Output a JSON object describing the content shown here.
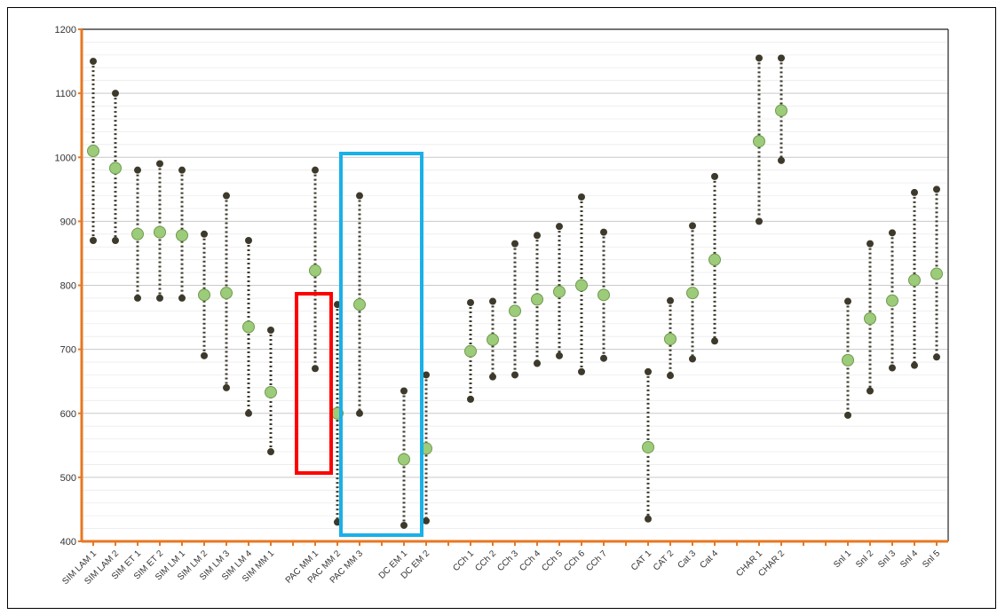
{
  "chart_data": {
    "type": "range-dot",
    "ylim": [
      400,
      1200
    ],
    "yticks": [
      400,
      500,
      600,
      700,
      800,
      900,
      1000,
      1100,
      1200
    ],
    "grid": true,
    "colors": {
      "range_dot": "#3d3a2c",
      "mean_dot": "#9ccc7a",
      "mean_dot_edge": "#6f9a4e",
      "axis": "#e87722",
      "red_box": "#ff0000",
      "blue_box": "#1ab0e8"
    },
    "items": [
      {
        "label": "SIM LAM 1",
        "min": 870,
        "max": 1150,
        "mid": 1010
      },
      {
        "label": "SIM LAM 2",
        "min": 870,
        "max": 1100,
        "mid": 983
      },
      {
        "label": "SIM ET 1",
        "min": 780,
        "max": 980,
        "mid": 880
      },
      {
        "label": "SIM ET 2",
        "min": 780,
        "max": 990,
        "mid": 883
      },
      {
        "label": "SIM LM 1",
        "min": 780,
        "max": 980,
        "mid": 878
      },
      {
        "label": "SIM LM 2",
        "min": 690,
        "max": 880,
        "mid": 785
      },
      {
        "label": "SIM LM 3",
        "min": 640,
        "max": 940,
        "mid": 788
      },
      {
        "label": "SIM LM 4",
        "min": 600,
        "max": 870,
        "mid": 735
      },
      {
        "label": "SIM MM 1",
        "min": 540,
        "max": 730,
        "mid": 633
      },
      {
        "label": "",
        "gap": true
      },
      {
        "label": "PAC MM 1",
        "min": 670,
        "max": 980,
        "mid": 823
      },
      {
        "label": "PAC MM 2",
        "min": 430,
        "max": 770,
        "mid": 600
      },
      {
        "label": "PAC MM 3",
        "min": 600,
        "max": 940,
        "mid": 770
      },
      {
        "label": "",
        "gap": true
      },
      {
        "label": "DC EM 1",
        "min": 425,
        "max": 635,
        "mid": 528
      },
      {
        "label": "DC EM 2",
        "min": 432,
        "max": 660,
        "mid": 545
      },
      {
        "label": "",
        "gap": true
      },
      {
        "label": "CCh 1",
        "min": 622,
        "max": 773,
        "mid": 697
      },
      {
        "label": "CCh 2",
        "min": 657,
        "max": 775,
        "mid": 715
      },
      {
        "label": "CCh 3",
        "min": 660,
        "max": 865,
        "mid": 760
      },
      {
        "label": "CCh 4",
        "min": 678,
        "max": 878,
        "mid": 778
      },
      {
        "label": "CCh 5",
        "min": 690,
        "max": 892,
        "mid": 790
      },
      {
        "label": "CCh 6",
        "min": 665,
        "max": 938,
        "mid": 800
      },
      {
        "label": "CCh 7",
        "min": 686,
        "max": 883,
        "mid": 785
      },
      {
        "label": "",
        "gap": true
      },
      {
        "label": "CAT 1",
        "min": 435,
        "max": 665,
        "mid": 547
      },
      {
        "label": "CAT 2",
        "min": 659,
        "max": 776,
        "mid": 716
      },
      {
        "label": "Cat 3",
        "min": 685,
        "max": 893,
        "mid": 788
      },
      {
        "label": "Cat 4",
        "min": 713,
        "max": 970,
        "mid": 840
      },
      {
        "label": "",
        "gap": true
      },
      {
        "label": "CHAR 1",
        "min": 900,
        "max": 1155,
        "mid": 1025
      },
      {
        "label": "CHAR 2",
        "min": 995,
        "max": 1155,
        "mid": 1073
      },
      {
        "label": "",
        "gap": true
      },
      {
        "label": "",
        "gap": true
      },
      {
        "label": "Snl 1",
        "min": 597,
        "max": 775,
        "mid": 683
      },
      {
        "label": "Snl 2",
        "min": 635,
        "max": 865,
        "mid": 748
      },
      {
        "label": "Snl 3",
        "min": 671,
        "max": 882,
        "mid": 776
      },
      {
        "label": "Snl 4",
        "min": 675,
        "max": 945,
        "mid": 808
      },
      {
        "label": "Snl 5",
        "min": 688,
        "max": 950,
        "mid": 818
      }
    ]
  }
}
